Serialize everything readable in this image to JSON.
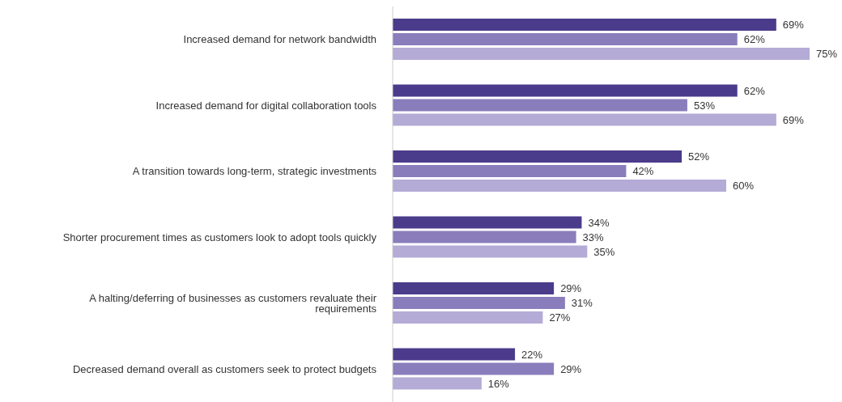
{
  "chart_data": {
    "type": "bar",
    "orientation": "horizontal",
    "categories": [
      "Increased demand for network bandwidth",
      "Increased demand for digital collaboration tools",
      "A transition towards long-term, strategic investments",
      "Shorter procurement times as customers look to adopt tools quickly",
      "A halting/deferring of businesses as customers revaluate their requirements",
      "Decreased demand overall as customers seek to protect budgets"
    ],
    "series": [
      {
        "color": "#4b3b8b",
        "values": [
          69,
          62,
          52,
          34,
          29,
          22
        ],
        "value_labels": [
          "69%",
          "62%",
          "52%",
          "34%",
          "29%",
          "22%"
        ]
      },
      {
        "color": "#8a7dbc",
        "values": [
          62,
          53,
          42,
          33,
          31,
          29
        ],
        "value_labels": [
          "62%",
          "53%",
          "42%",
          "33%",
          "31%",
          "29%"
        ]
      },
      {
        "color": "#b4abd6",
        "values": [
          75,
          69,
          60,
          35,
          27,
          16
        ],
        "value_labels": [
          "75%",
          "69%",
          "60%",
          "35%",
          "27%",
          "16%"
        ]
      }
    ],
    "legend": false,
    "grid": false
  }
}
